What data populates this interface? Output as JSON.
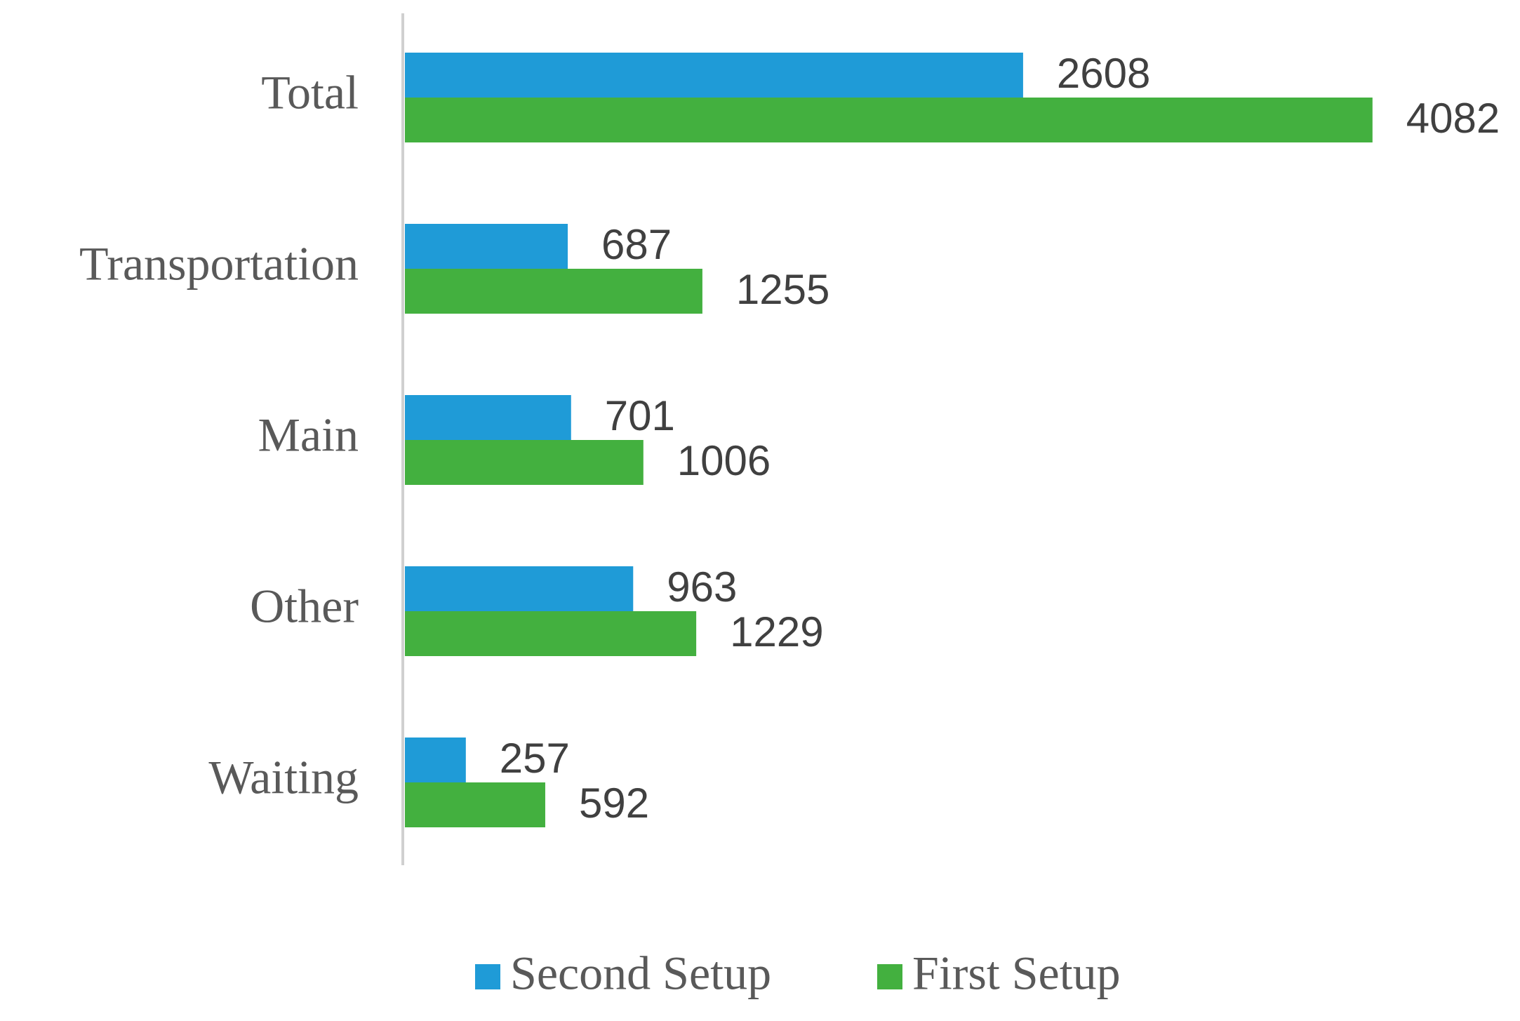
{
  "chart_data": {
    "type": "barh",
    "categories": [
      "Total",
      "Transportation",
      "Main",
      "Other",
      "Waiting"
    ],
    "series": [
      {
        "name": "Second Setup",
        "color": "#1f9bd7",
        "values": [
          2608,
          687,
          701,
          963,
          257
        ]
      },
      {
        "name": "First Setup",
        "color": "#43b03f",
        "values": [
          4082,
          1255,
          1006,
          1229,
          592
        ]
      }
    ],
    "xlim": [
      0,
      4500
    ],
    "legend": "bottom"
  }
}
